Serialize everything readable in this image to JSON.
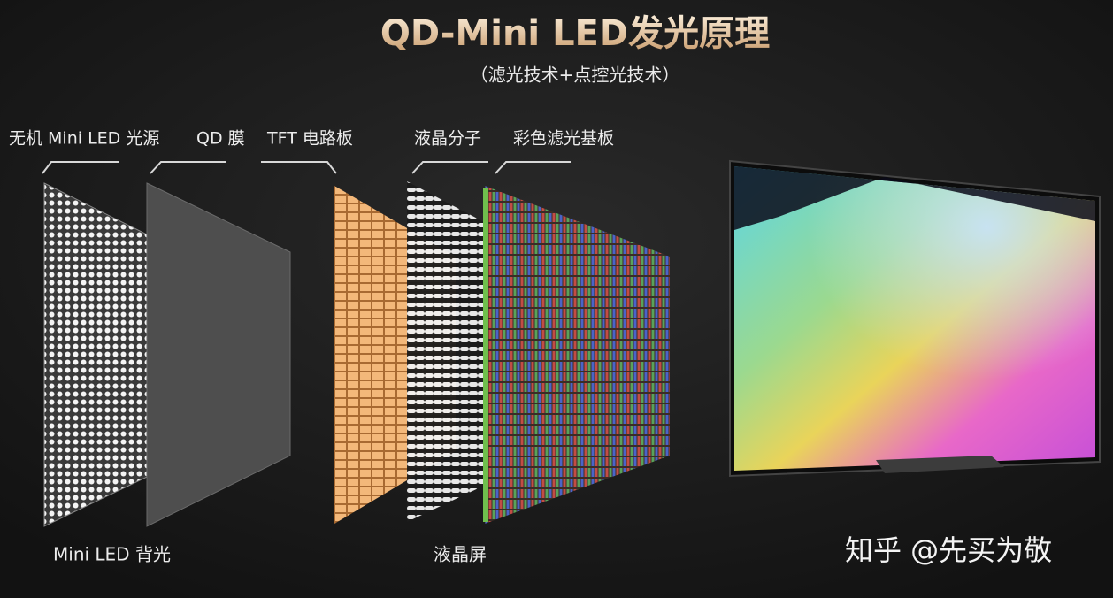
{
  "header": {
    "title": "QD-Mini LED发光原理",
    "subtitle": "（滤光技术+点控光技术）"
  },
  "layers": [
    {
      "label": "无机 Mini LED 光源"
    },
    {
      "label": "QD 膜"
    },
    {
      "label": "TFT 电路板"
    },
    {
      "label": "液晶分子"
    },
    {
      "label": "彩色滤光基板"
    }
  ],
  "groups": [
    {
      "label": "Mini LED 背光"
    },
    {
      "label": "液晶屏"
    }
  ],
  "watermark": "知乎 @先买为敬"
}
